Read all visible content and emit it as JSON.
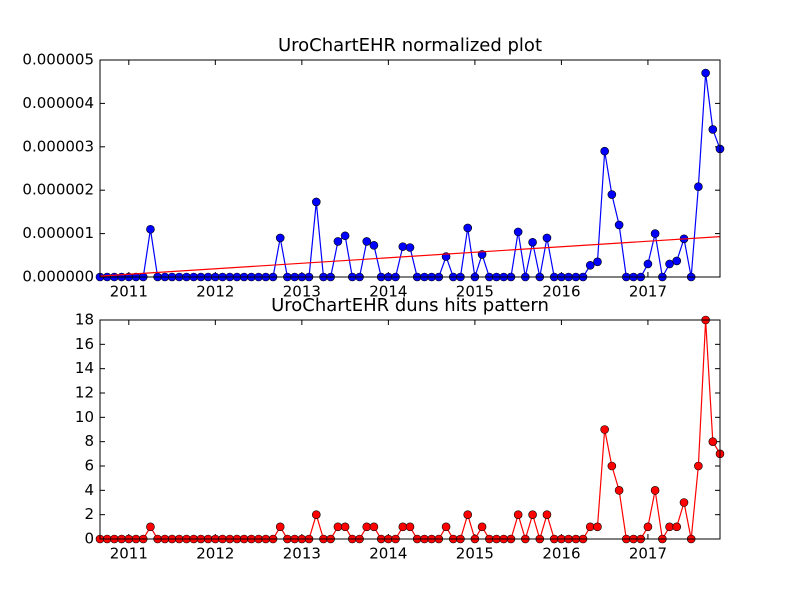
{
  "chart_data": [
    {
      "type": "line",
      "title": "UroChartEHR normalized plot",
      "x": [
        2010.667,
        2010.75,
        2010.833,
        2010.917,
        2011.0,
        2011.083,
        2011.167,
        2011.25,
        2011.333,
        2011.417,
        2011.5,
        2011.583,
        2011.667,
        2011.75,
        2011.833,
        2011.917,
        2012.0,
        2012.083,
        2012.167,
        2012.25,
        2012.333,
        2012.417,
        2012.5,
        2012.583,
        2012.667,
        2012.75,
        2012.833,
        2012.917,
        2013.0,
        2013.083,
        2013.167,
        2013.25,
        2013.333,
        2013.417,
        2013.5,
        2013.583,
        2013.667,
        2013.75,
        2013.833,
        2013.917,
        2014.0,
        2014.083,
        2014.167,
        2014.25,
        2014.333,
        2014.417,
        2014.5,
        2014.583,
        2014.667,
        2014.75,
        2014.833,
        2014.917,
        2015.0,
        2015.083,
        2015.167,
        2015.25,
        2015.333,
        2015.417,
        2015.5,
        2015.583,
        2015.667,
        2015.75,
        2015.833,
        2015.917,
        2016.0,
        2016.083,
        2016.167,
        2016.25,
        2016.333,
        2016.417,
        2016.5,
        2016.583,
        2016.667,
        2016.75,
        2016.833,
        2016.917,
        2017.0,
        2017.083,
        2017.167,
        2017.25,
        2017.333,
        2017.417,
        2017.5,
        2017.583,
        2017.667,
        2017.75,
        2017.833
      ],
      "series": [
        {
          "color": "#0000ff",
          "markers": true,
          "values": [
            0,
            0,
            0,
            0,
            0,
            0,
            0,
            1.1e-06,
            0,
            0,
            0,
            0,
            0,
            0,
            0,
            0,
            0,
            0,
            0,
            0,
            0,
            0,
            0,
            0,
            0,
            9e-07,
            0,
            0,
            0,
            0,
            1.73e-06,
            0,
            0,
            8.2e-07,
            9.5e-07,
            0,
            0,
            8.2e-07,
            7.3e-07,
            0,
            0,
            0,
            7e-07,
            6.8e-07,
            0,
            0,
            0,
            0,
            4.7e-07,
            0,
            0,
            1.13e-06,
            0,
            5.2e-07,
            0,
            0,
            0,
            0,
            1.04e-06,
            0,
            8e-07,
            0,
            9e-07,
            0,
            0,
            0,
            0,
            0,
            2.7e-07,
            3.5e-07,
            2.9e-06,
            1.9e-06,
            1.2e-06,
            0,
            0,
            0,
            3e-07,
            1e-06,
            0,
            3e-07,
            3.7e-07,
            8.8e-07,
            0,
            2.08e-06,
            4.7e-06,
            3.4e-06,
            2.95e-06
          ]
        },
        {
          "color": "#ff0000",
          "markers": false,
          "x": [
            2010.667,
            2017.833
          ],
          "values": [
            2e-08,
            9.3e-07
          ]
        }
      ],
      "xlim": [
        2010.667,
        2017.833
      ],
      "xticks": [
        2011,
        2012,
        2013,
        2014,
        2015,
        2016,
        2017
      ],
      "ylim": [
        0,
        5e-06
      ],
      "yticks": [
        {
          "value": 0,
          "label": "0.000000"
        },
        {
          "value": 1e-06,
          "label": "0.000001"
        },
        {
          "value": 2e-06,
          "label": "0.000002"
        },
        {
          "value": 3e-06,
          "label": "0.000003"
        },
        {
          "value": 4e-06,
          "label": "0.000004"
        },
        {
          "value": 5e-06,
          "label": "0.000005"
        }
      ]
    },
    {
      "type": "line",
      "title": "UroChartEHR duns hits pattern",
      "x": [
        2010.667,
        2010.75,
        2010.833,
        2010.917,
        2011.0,
        2011.083,
        2011.167,
        2011.25,
        2011.333,
        2011.417,
        2011.5,
        2011.583,
        2011.667,
        2011.75,
        2011.833,
        2011.917,
        2012.0,
        2012.083,
        2012.167,
        2012.25,
        2012.333,
        2012.417,
        2012.5,
        2012.583,
        2012.667,
        2012.75,
        2012.833,
        2012.917,
        2013.0,
        2013.083,
        2013.167,
        2013.25,
        2013.333,
        2013.417,
        2013.5,
        2013.583,
        2013.667,
        2013.75,
        2013.833,
        2013.917,
        2014.0,
        2014.083,
        2014.167,
        2014.25,
        2014.333,
        2014.417,
        2014.5,
        2014.583,
        2014.667,
        2014.75,
        2014.833,
        2014.917,
        2015.0,
        2015.083,
        2015.167,
        2015.25,
        2015.333,
        2015.417,
        2015.5,
        2015.583,
        2015.667,
        2015.75,
        2015.833,
        2015.917,
        2016.0,
        2016.083,
        2016.167,
        2016.25,
        2016.333,
        2016.417,
        2016.5,
        2016.583,
        2016.667,
        2016.75,
        2016.833,
        2016.917,
        2017.0,
        2017.083,
        2017.167,
        2017.25,
        2017.333,
        2017.417,
        2017.5,
        2017.583,
        2017.667,
        2017.75,
        2017.833
      ],
      "series": [
        {
          "color": "#ff0000",
          "markers": true,
          "values": [
            0,
            0,
            0,
            0,
            0,
            0,
            0,
            1,
            0,
            0,
            0,
            0,
            0,
            0,
            0,
            0,
            0,
            0,
            0,
            0,
            0,
            0,
            0,
            0,
            0,
            1,
            0,
            0,
            0,
            0,
            2,
            0,
            0,
            1,
            1,
            0,
            0,
            1,
            1,
            0,
            0,
            0,
            1,
            1,
            0,
            0,
            0,
            0,
            1,
            0,
            0,
            2,
            0,
            1,
            0,
            0,
            0,
            0,
            2,
            0,
            2,
            0,
            2,
            0,
            0,
            0,
            0,
            0,
            1,
            1,
            9,
            6,
            4,
            0,
            0,
            0,
            1,
            4,
            0,
            1,
            1,
            3,
            0,
            6,
            18,
            8,
            7
          ]
        }
      ],
      "xlim": [
        2010.667,
        2017.833
      ],
      "xticks": [
        2011,
        2012,
        2013,
        2014,
        2015,
        2016,
        2017
      ],
      "ylim": [
        0,
        18
      ],
      "yticks": [
        0,
        2,
        4,
        6,
        8,
        10,
        12,
        14,
        16,
        18
      ]
    }
  ]
}
